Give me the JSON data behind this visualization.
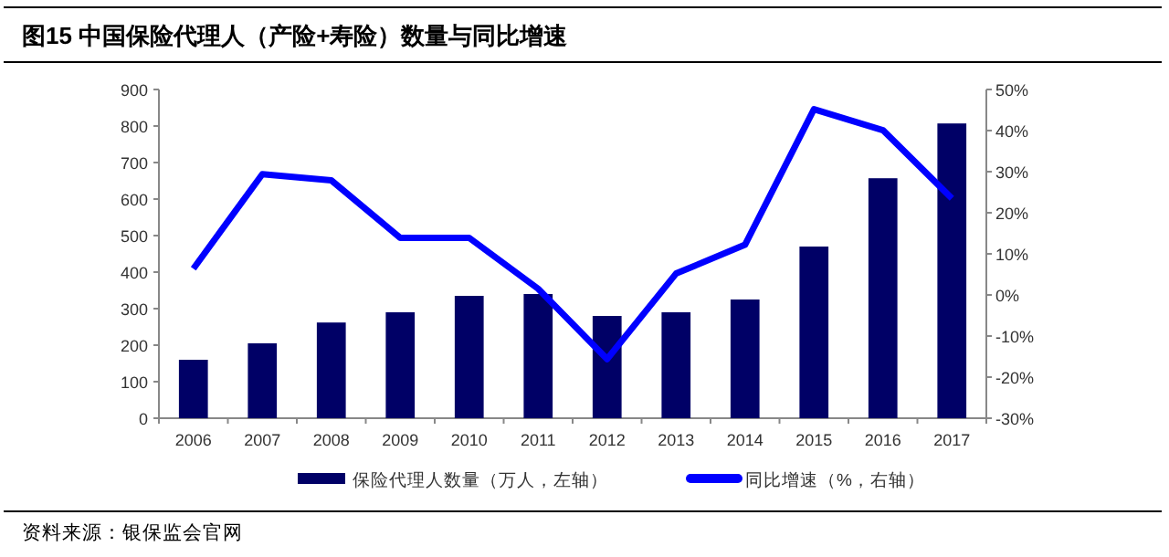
{
  "chart_data": {
    "type": "bar",
    "title": "图15 中国保险代理人（产险+寿险）数量与同比增速",
    "categories": [
      "2006",
      "2007",
      "2008",
      "2009",
      "2010",
      "2011",
      "2012",
      "2013",
      "2014",
      "2015",
      "2016",
      "2017"
    ],
    "series": [
      {
        "name": "保险代理人数量（万人，左轴）",
        "color": "#000066",
        "values": [
          160,
          205,
          262,
          290,
          335,
          340,
          280,
          290,
          325,
          470,
          657,
          807
        ]
      },
      {
        "name": "同比增速（%，右轴）",
        "type": "line",
        "axis": "y2",
        "color": "#0000ff",
        "values": [
          6.4,
          29.4,
          27.9,
          13.9,
          13.9,
          1.5,
          -15.6,
          5.2,
          12.2,
          45.2,
          40.1,
          23.5
        ]
      }
    ],
    "ylim": [
      0,
      900
    ],
    "yticks": [
      0,
      100,
      200,
      300,
      400,
      500,
      600,
      700,
      800,
      900
    ],
    "y2lim": [
      -30,
      50
    ],
    "y2ticks": [
      {
        "value": -30,
        "label": "-30%"
      },
      {
        "value": -20,
        "label": "-20%"
      },
      {
        "value": -10,
        "label": "-10%"
      },
      {
        "value": 0,
        "label": "0%"
      },
      {
        "value": 10,
        "label": "10%"
      },
      {
        "value": 20,
        "label": "20%"
      },
      {
        "value": 30,
        "label": "30%"
      },
      {
        "value": 40,
        "label": "40%"
      },
      {
        "value": 50,
        "label": "50%"
      }
    ],
    "legend": "bottom",
    "grid": false,
    "marker": "none",
    "line_style": "solid",
    "annotations": [
      "资料来源：银保监会官网"
    ]
  }
}
